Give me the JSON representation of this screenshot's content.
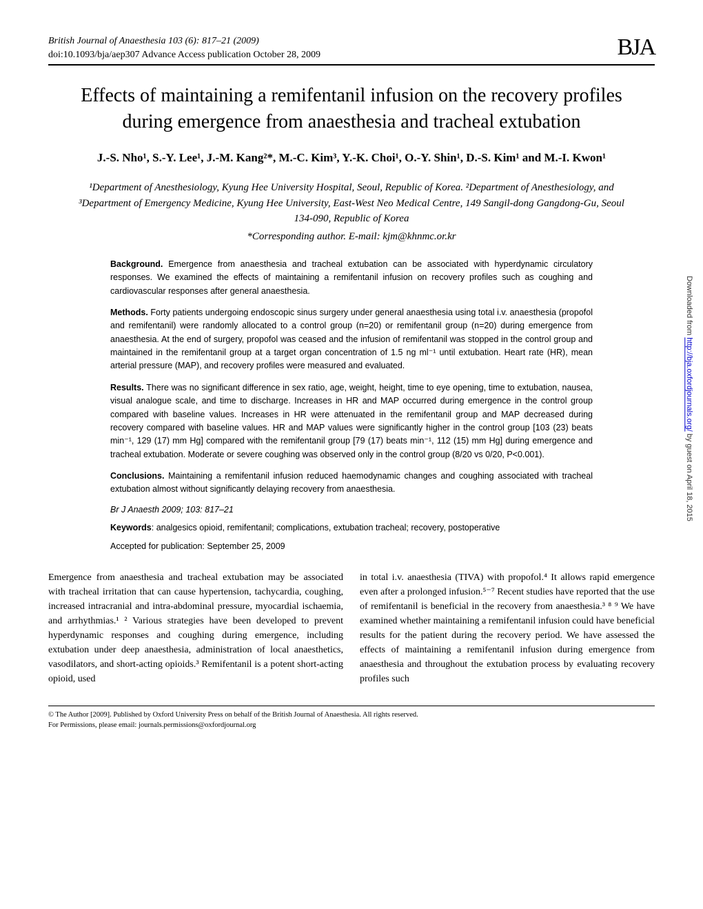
{
  "header": {
    "journal_line": "British Journal of Anaesthesia 103 (6): 817–21 (2009)",
    "doi_line": "doi:10.1093/bja/aep307   Advance Access publication October 28, 2009",
    "logo": "BJA"
  },
  "title": "Effects of maintaining a remifentanil infusion on the recovery profiles during emergence from anaesthesia and tracheal extubation",
  "authors": "J.-S. Nho¹, S.-Y. Lee¹, J.-M. Kang²*, M.-C. Kim³, Y.-K. Choi¹, O.-Y. Shin¹, D.-S. Kim¹ and M.-I. Kwon¹",
  "affiliations": "¹Department of Anesthesiology, Kyung Hee University Hospital, Seoul, Republic of Korea. ²Department of Anesthesiology, and ³Department of Emergency Medicine, Kyung Hee University, East-West Neo Medical Centre, 149 Sangil-dong Gangdong-Gu, Seoul 134-090, Republic of Korea",
  "corresponding": "*Corresponding author. E-mail: kjm@khnmc.or.kr",
  "abstract": {
    "background_label": "Background.",
    "background": " Emergence from anaesthesia and tracheal extubation can be associated with hyperdynamic circulatory responses. We examined the effects of maintaining a remifentanil infusion on recovery profiles such as coughing and cardiovascular responses after general anaesthesia.",
    "methods_label": "Methods.",
    "methods": " Forty patients undergoing endoscopic sinus surgery under general anaesthesia using total i.v. anaesthesia (propofol and remifentanil) were randomly allocated to a control group (n=20) or remifentanil group (n=20) during emergence from anaesthesia. At the end of surgery, propofol was ceased and the infusion of remifentanil was stopped in the control group and maintained in the remifentanil group at a target organ concentration of 1.5 ng ml⁻¹ until extubation. Heart rate (HR), mean arterial pressure (MAP), and recovery profiles were measured and evaluated.",
    "results_label": "Results.",
    "results": " There was no significant difference in sex ratio, age, weight, height, time to eye opening, time to extubation, nausea, visual analogue scale, and time to discharge. Increases in HR and MAP occurred during emergence in the control group compared with baseline values. Increases in HR were attenuated in the remifentanil group and MAP decreased during recovery compared with baseline values. HR and MAP values were significantly higher in the control group [103 (23) beats min⁻¹, 129 (17) mm Hg] compared with the remifentanil group [79 (17) beats min⁻¹, 112 (15) mm Hg] during emergence and tracheal extubation. Moderate or severe coughing was observed only in the control group (8/20 vs 0/20, P<0.001).",
    "conclusions_label": "Conclusions.",
    "conclusions": " Maintaining a remifentanil infusion reduced haemodynamic changes and coughing associated with tracheal extubation almost without significantly delaying recovery from anaesthesia."
  },
  "citation": "Br J Anaesth 2009; 103: 817–21",
  "keywords_label": "Keywords",
  "keywords": ": analgesics opioid, remifentanil; complications, extubation tracheal; recovery, postoperative",
  "accepted": "Accepted for publication: September 25, 2009",
  "body": {
    "col1": "Emergence from anaesthesia and tracheal extubation may be associated with tracheal irritation that can cause hypertension, tachycardia, coughing, increased intracranial and intra-abdominal pressure, myocardial ischaemia, and arrhythmias.¹ ² Various strategies have been developed to prevent hyperdynamic responses and coughing during emergence, including extubation under deep anaesthesia, administration of local anaesthetics, vasodilators, and short-acting opioids.³ Remifentanil is a potent short-acting opioid, used",
    "col2": "in total i.v. anaesthesia (TIVA) with propofol.⁴ It allows rapid emergence even after a prolonged infusion.⁵⁻⁷ Recent studies have reported that the use of remifentanil is beneficial in the recovery from anaesthesia.³ ⁸ ⁹ We have examined whether maintaining a remifentanil infusion could have beneficial results for the patient during the recovery period. We have assessed the effects of maintaining a remifentanil infusion during emergence from anaesthesia and throughout the extubation process by evaluating recovery profiles such"
  },
  "footer": {
    "line1": "© The Author [2009]. Published by Oxford University Press on behalf of the British Journal of Anaesthesia. All rights reserved.",
    "line2": "For Permissions, please email: journals.permissions@oxfordjournal.org"
  },
  "sidenote": {
    "prefix": "Downloaded from ",
    "link": "http://bja.oxfordjournals.org/",
    "suffix": " by guest on April 18, 2015"
  }
}
